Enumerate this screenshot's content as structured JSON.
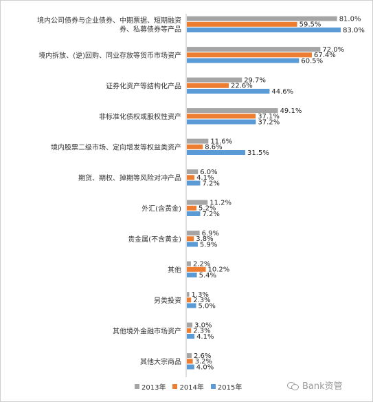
{
  "chart_data": {
    "type": "bar",
    "orientation": "horizontal",
    "categories": [
      [
        "境内公司债券与企业债券、中期票据、短期融资",
        "券、私募债券等产品"
      ],
      [
        "境内拆放、(逆)回购、同业存放等货币市场资产"
      ],
      [
        "证券化资产等结构化产品"
      ],
      [
        "非标准化债权或股权性资产"
      ],
      [
        "境内股票二级市场、定向增发等权益类资产"
      ],
      [
        "期货、期权、掉期等风险对冲产品"
      ],
      [
        "外汇(含黄金)"
      ],
      [
        "贵金属(不含黄金)"
      ],
      [
        "其他"
      ],
      [
        "另类投资"
      ],
      [
        "其他境外金融市场资产"
      ],
      [
        "其他大宗商品"
      ]
    ],
    "series": [
      {
        "name": "2013年",
        "color": "#a5a5a5",
        "values": [
          81.0,
          72.0,
          29.7,
          49.1,
          11.6,
          6.0,
          11.2,
          6.9,
          2.2,
          1.3,
          3.0,
          2.6
        ],
        "labels": [
          "81.0%",
          "72.0%",
          "29.7%",
          "49.1%",
          "11.6%",
          "6.0%",
          "11.2%",
          "6.9%",
          "2.2%",
          "1.3%",
          "3.0%",
          "2.6%"
        ]
      },
      {
        "name": "2014年",
        "color": "#ed7d31",
        "values": [
          59.5,
          67.4,
          22.6,
          37.1,
          8.6,
          4.1,
          5.2,
          3.8,
          10.2,
          2.3,
          2.3,
          3.2
        ],
        "labels": [
          "59.5%",
          "67.4%",
          "22.6%",
          "37.1%",
          "8.6%",
          "4.1%",
          "5.2%",
          "3.8%",
          "10.2%",
          "2.3%",
          "2.3%",
          "3.2%"
        ]
      },
      {
        "name": "2015年",
        "color": "#5b9bd5",
        "values": [
          83.0,
          60.5,
          44.6,
          37.2,
          31.5,
          7.2,
          7.2,
          5.9,
          5.4,
          5.0,
          4.1,
          4.0
        ],
        "labels": [
          "83.0%",
          "60.5%",
          "44.6%",
          "37.2%",
          "31.5%",
          "7.2%",
          "7.2%",
          "5.9%",
          "5.4%",
          "5.0%",
          "4.1%",
          "4.0%"
        ]
      }
    ],
    "xlim": [
      0,
      90
    ],
    "legend_position": "bottom",
    "grid": false
  },
  "watermark": {
    "text": "Bank资管",
    "icon": "wechat-icon"
  }
}
